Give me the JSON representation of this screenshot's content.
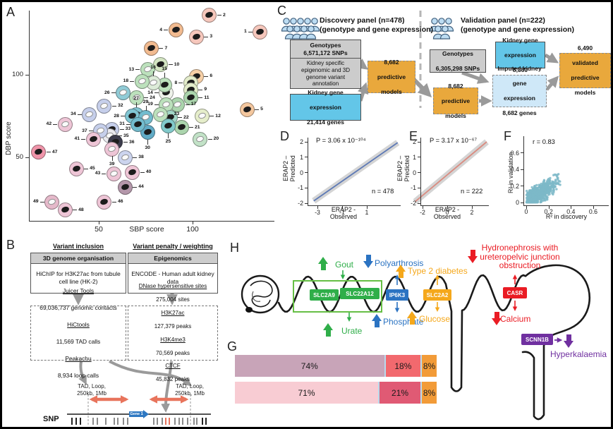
{
  "figure": {
    "panel_labels": {
      "a": "A",
      "b": "B",
      "c": "C",
      "d": "D",
      "e": "E",
      "f": "F",
      "g": "G",
      "h": "H"
    }
  },
  "chart_data": [
    {
      "id": "A",
      "type": "scatter",
      "xlabel": "SBP score",
      "ylabel": "DBP score",
      "x_ticks": [
        50,
        100
      ],
      "y_ticks": [
        50,
        100
      ],
      "xlim": [
        10,
        145
      ],
      "ylim": [
        10,
        145
      ],
      "description": "49 tissue/organ circles plotted by SBP vs DBP enrichment score",
      "points": [
        {
          "n": 1,
          "sbp": 136,
          "dbp": 126,
          "c": "#f6c7bc",
          "g": "dark",
          "s": "left"
        },
        {
          "n": 2,
          "sbp": 109,
          "dbp": 136,
          "c": "#f6c7bc",
          "g": "dark",
          "s": "right"
        },
        {
          "n": 3,
          "sbp": 102,
          "dbp": 123,
          "c": "#f6c7bc",
          "g": "dark",
          "s": "right"
        },
        {
          "n": 4,
          "sbp": 91,
          "dbp": 127,
          "c": "#f2bb90",
          "g": "dark",
          "s": "left"
        },
        {
          "n": 5,
          "sbp": 129,
          "dbp": 79,
          "c": "#f4c79e",
          "g": "dark",
          "s": "right"
        },
        {
          "n": 6,
          "sbp": 102,
          "dbp": 99,
          "c": "#f6cfa6",
          "g": "dark",
          "s": "right"
        },
        {
          "n": 7,
          "sbp": 78,
          "dbp": 116,
          "c": "#f2bb90",
          "g": "dark",
          "s": "right"
        },
        {
          "n": 8,
          "sbp": 99,
          "dbp": 95,
          "c": "#e3ecca",
          "g": "dark",
          "s": "left"
        },
        {
          "n": 9,
          "sbp": 99,
          "dbp": 91,
          "c": "#e3ecca",
          "g": "dark",
          "s": "right"
        },
        {
          "n": 10,
          "sbp": 83,
          "dbp": 106,
          "c": "#d3e5c2",
          "g": "dark",
          "s": "right"
        },
        {
          "n": 11,
          "sbp": 99,
          "dbp": 86,
          "c": "#abd5ad",
          "g": "dark",
          "s": "right"
        },
        {
          "n": 12,
          "sbp": 105,
          "dbp": 75,
          "c": "#e6eecb",
          "g": "light",
          "s": "right"
        },
        {
          "n": 13,
          "sbp": 76,
          "dbp": 103,
          "c": "#bce1bc",
          "g": "light",
          "s": "left"
        },
        {
          "n": 14,
          "sbp": 86,
          "dbp": 89,
          "c": "#eef2ea",
          "g": "dark",
          "s": "left"
        },
        {
          "n": 15,
          "sbp": 85,
          "dbp": 94,
          "c": "#bce1bc",
          "g": "dark",
          "s": "above"
        },
        {
          "n": 16,
          "sbp": 79,
          "dbp": 95,
          "c": "#dcebd8",
          "g": "light",
          "s": "above"
        },
        {
          "n": 17,
          "sbp": 92,
          "dbp": 82,
          "c": "#abd5ad",
          "g": "light",
          "s": "right"
        },
        {
          "n": 18,
          "sbp": 73,
          "dbp": 96,
          "c": "#bce1bc",
          "g": "light",
          "s": "left"
        },
        {
          "n": 19,
          "sbp": 86,
          "dbp": 82,
          "c": "#bce1bc",
          "g": "light",
          "s": "left"
        },
        {
          "n": 20,
          "sbp": 104,
          "dbp": 61,
          "c": "#c2e2c7",
          "g": "light",
          "s": "right"
        },
        {
          "n": 21,
          "sbp": 94,
          "dbp": 68,
          "c": "#abd5ad",
          "g": "dark",
          "s": "right"
        },
        {
          "n": 22,
          "sbp": 88,
          "dbp": 74,
          "c": "#a2d6c7",
          "g": "dark",
          "s": "right"
        },
        {
          "n": 23,
          "sbp": 83,
          "dbp": 76,
          "c": "#bce1bc",
          "g": "light",
          "s": "right"
        },
        {
          "n": 24,
          "sbp": 70,
          "dbp": 86,
          "c": "#bce1bc",
          "g": "light",
          "s": "right"
        },
        {
          "n": 25,
          "sbp": 87,
          "dbp": 69,
          "c": "#81cacb",
          "g": "dark",
          "s": "below"
        },
        {
          "n": 26,
          "sbp": 63,
          "dbp": 89,
          "c": "#90cbd6",
          "g": "light",
          "s": "left"
        },
        {
          "n": 27,
          "sbp": 70,
          "dbp": 76,
          "c": "#81c6d3",
          "g": "dark",
          "s": "above"
        },
        {
          "n": 28,
          "sbp": 68,
          "dbp": 75,
          "c": "#81c6d3",
          "g": "dark",
          "s": "left"
        },
        {
          "n": 29,
          "sbp": 75,
          "dbp": 74,
          "c": "#72bcce",
          "g": "light",
          "s": "above"
        },
        {
          "n": 30,
          "sbp": 76,
          "dbp": 65,
          "c": "#61abc6",
          "g": "dark",
          "s": "below"
        },
        {
          "n": 31,
          "sbp": 71,
          "dbp": 70,
          "c": "#72bcce",
          "g": "dark",
          "s": "left"
        },
        {
          "n": 32,
          "sbp": 53,
          "dbp": 81,
          "c": "#c6cfeb",
          "g": "light",
          "s": "right"
        },
        {
          "n": 33,
          "sbp": 57,
          "dbp": 67,
          "c": "#c6cfeb",
          "g": "dark",
          "s": "right"
        },
        {
          "n": 34,
          "sbp": 45,
          "dbp": 76,
          "c": "#c6cfeb",
          "g": "light",
          "s": "left"
        },
        {
          "n": 35,
          "sbp": 56,
          "dbp": 63,
          "c": "#eaeaef",
          "g": "light",
          "s": "right"
        },
        {
          "n": 36,
          "sbp": 59,
          "dbp": 59,
          "c": "#3c3c4c",
          "g": "dark",
          "s": "right"
        },
        {
          "n": 37,
          "sbp": 51,
          "dbp": 66,
          "c": "#c6cfeb",
          "g": "light",
          "s": "left"
        },
        {
          "n": 38,
          "sbp": 64,
          "dbp": 50,
          "c": "#ccd4ee",
          "g": "light",
          "s": "right"
        },
        {
          "n": 39,
          "sbp": 57,
          "dbp": 55,
          "c": "#eec5d6",
          "g": "light",
          "s": "below"
        },
        {
          "n": 40,
          "sbp": 68,
          "dbp": 41,
          "c": "#eec5d6",
          "g": "dark",
          "s": "right"
        },
        {
          "n": 41,
          "sbp": 47,
          "dbp": 61,
          "c": "#eec5d6",
          "g": "dark",
          "s": "left"
        },
        {
          "n": 42,
          "sbp": 32,
          "dbp": 70,
          "c": "#eec5d6",
          "g": "light",
          "s": "left"
        },
        {
          "n": 43,
          "sbp": 58,
          "dbp": 40,
          "c": "#eec5d6",
          "g": "light",
          "s": "left"
        },
        {
          "n": 44,
          "sbp": 64,
          "dbp": 32,
          "c": "#b497aa",
          "g": "dark",
          "s": "right"
        },
        {
          "n": 45,
          "sbp": 38,
          "dbp": 43,
          "c": "#eec5d6",
          "g": "dark",
          "s": "right"
        },
        {
          "n": 46,
          "sbp": 53,
          "dbp": 23,
          "c": "#eec5d6",
          "g": "dark",
          "s": "right"
        },
        {
          "n": 47,
          "sbp": 18,
          "dbp": 53,
          "c": "#f095aa",
          "g": "dark",
          "s": "right"
        },
        {
          "n": 48,
          "sbp": 32,
          "dbp": 18,
          "c": "#eec5d6",
          "g": "dark",
          "s": "right"
        },
        {
          "n": 49,
          "sbp": 25,
          "dbp": 23,
          "c": "#e5b9ca",
          "g": "light",
          "s": "left"
        }
      ]
    },
    {
      "id": "D",
      "type": "line",
      "p_label": "P = 3.06 x 10⁻¹⁰⁴",
      "n_label": "n = 478",
      "ylabel_lines": [
        "ERAP2 –",
        "Predicted"
      ],
      "xlabel_lines": [
        "ERAP2 -",
        "Observed"
      ],
      "x_ticks": [
        -3,
        -1,
        1
      ],
      "y_ticks": [
        2,
        1,
        0,
        -1,
        -2
      ],
      "line": {
        "x1": -3.3,
        "y1": -1.85,
        "x2": 3.5,
        "y2": 1.95
      },
      "line_color": "#5d79b5",
      "band_color": "#c6c6c6"
    },
    {
      "id": "E",
      "type": "line",
      "p_label": "P = 3.17 x 10⁻⁶⁷",
      "n_label": "n = 222",
      "ylabel_lines": [
        "ERAP2 –",
        "Predicted"
      ],
      "xlabel_lines": [
        "ERAP2 -",
        "Observed"
      ],
      "x_ticks": [
        -2,
        0,
        2
      ],
      "y_ticks": [
        2,
        1,
        0,
        -1,
        -2
      ],
      "line": {
        "x1": -2.6,
        "y1": -1.9,
        "x2": 3.2,
        "y2": 2.0
      },
      "line_color": "#d98b80",
      "band_color": "#c6c6c6"
    },
    {
      "id": "F",
      "type": "scatter",
      "r_label": "r = 0.83",
      "xlabel": "R² in discovery",
      "ylabel": "R² in validation",
      "x_ticks": [
        0,
        0.2,
        0.4,
        0.6
      ],
      "y_ticks": [
        0,
        0.2,
        0.4,
        0.6
      ],
      "xlim": [
        0,
        0.7
      ],
      "ylim": [
        0,
        0.7
      ],
      "point_color": "#7db9c8",
      "n_points": 900,
      "trend": "dense positively-correlated cloud concentrated near origin"
    },
    {
      "id": "G",
      "type": "stacked_bar",
      "orientation": "horizontal",
      "rows": [
        {
          "segments": [
            {
              "label": "74%",
              "value": 74,
              "color": "#c8a4b8"
            },
            {
              "label": "18%",
              "value": 18,
              "color": "#f2696e"
            },
            {
              "label": "8%",
              "value": 8,
              "color": "#f29b38"
            }
          ]
        },
        {
          "segments": [
            {
              "label": "71%",
              "value": 71,
              "color": "#f8ccd3"
            },
            {
              "label": "21%",
              "value": 21,
              "color": "#e05a74"
            },
            {
              "label": "8%",
              "value": 8,
              "color": "#f29b38"
            }
          ]
        }
      ]
    }
  ],
  "panel_b": {
    "col1_header": "Variant inclusion",
    "col2_header": "Variant penalty / weighting",
    "box1_title": "3D genome organisation",
    "box1_body": [
      "HiChIP for H3K27ac from tubule",
      "cell line (HK-2)"
    ],
    "box2_title": "Epigenomics",
    "box2_body": [
      "ENCODE - Human adult kidney",
      "data"
    ],
    "dash1_lines": [
      {
        "t": "Juicer Tools",
        "u": true
      },
      {
        "t": "69,036,737 genomic contacts"
      },
      {
        "t": "HiCtools",
        "u": true
      },
      {
        "t": "11,569 TAD calls"
      },
      {
        "t": "Peakachu",
        "u": true
      },
      {
        "t": "8,934 loop calls"
      }
    ],
    "dash2_lines": [
      {
        "t": "DNase hypersensitive sites",
        "u": true
      },
      {
        "t": "275,004 sites"
      },
      {
        "t": "H3K27ac",
        "u": true
      },
      {
        "t": "127,379 peaks"
      },
      {
        "t": "H3K4me3",
        "u": true
      },
      {
        "t": "70,569 peaks"
      },
      {
        "t": "CTCF",
        "u": true
      },
      {
        "t": "45,832 peaks"
      }
    ],
    "tad_label_lines": [
      "TAD, Loop,",
      "250kb, 1Mb"
    ],
    "gene_label": "Gene 1",
    "snp_label": "SNP",
    "snp_ticks": [
      {
        "x": 98,
        "c": "#222222"
      },
      {
        "x": 104,
        "c": "#222222"
      },
      {
        "x": 110,
        "c": "#222222"
      },
      {
        "x": 128,
        "c": "#8a8a8a"
      },
      {
        "x": 134,
        "c": "#8a8a8a"
      },
      {
        "x": 146,
        "c": "#8a8a8a"
      },
      {
        "x": 158,
        "c": "#8a8a8a"
      },
      {
        "x": 163,
        "c": "#8a8a8a"
      },
      {
        "x": 171,
        "c": "#8a8a8a"
      },
      {
        "x": 177,
        "c": "#8a8a8a"
      },
      {
        "x": 214,
        "c": "#8a8a8a"
      },
      {
        "x": 219,
        "c": "#8a8a8a"
      },
      {
        "x": 226,
        "c": "#8a8a8a"
      },
      {
        "x": 231,
        "c": "#e8745c"
      },
      {
        "x": 236,
        "c": "#e8745c"
      },
      {
        "x": 244,
        "c": "#8a8a8a"
      },
      {
        "x": 250,
        "c": "#8a8a8a"
      },
      {
        "x": 255,
        "c": "#8a8a8a"
      },
      {
        "x": 262,
        "c": "#8a8a8a"
      },
      {
        "x": 271,
        "c": "#8a8a8a"
      },
      {
        "x": 275,
        "c": "#8a8a8a"
      },
      {
        "x": 283,
        "c": "#222222"
      },
      {
        "x": 288,
        "c": "#222222"
      }
    ]
  },
  "panel_c": {
    "discovery_title": [
      "Discovery panel (n=478)",
      "(genotype and gene expression)"
    ],
    "validation_title": [
      "Validation panel (n=222)",
      "(genotype and gene expression)"
    ],
    "boxes": {
      "geno_disc_bold": [
        "Genotypes",
        "6,571,172 SNPs"
      ],
      "geno_disc_body": [
        "Kidney specific",
        "epigenomic and 3D",
        "genome variant",
        "annotation"
      ],
      "expr_disc": [
        "Kidney gene",
        "expression",
        "21,414 genes"
      ],
      "models_disc": [
        "8,682",
        "predictive",
        "models"
      ],
      "geno_val": [
        "Genotypes",
        "6,305,298 SNPs"
      ],
      "expr_val": [
        "Kidney gene",
        "expression",
        "8,360"
      ],
      "models_val": [
        "8,682",
        "predictive",
        "models"
      ],
      "imputed": [
        "Imputed kidney",
        "gene",
        "expression",
        "8,682 genes"
      ],
      "validated": [
        "6,490",
        "validated",
        "predictive",
        "models"
      ]
    },
    "colors": {
      "orange": "#e9a83c",
      "gray": "#cccccc",
      "blue": "#63c6e8",
      "light_blue": "#cfe8f8"
    }
  },
  "panel_h": {
    "genes": [
      {
        "name": "SLC2A9",
        "color": "#2fae49"
      },
      {
        "name": "SLC22A12",
        "color": "#2fae49"
      },
      {
        "name": "IP6K3",
        "color": "#2b73c2"
      },
      {
        "name": "SLC2A2",
        "color": "#f5a81c"
      },
      {
        "name": "CASR",
        "color": "#ea1c24"
      },
      {
        "name": "SCNN1B",
        "color": "#7030a0"
      }
    ],
    "annotations": [
      {
        "text": "Gout",
        "color": "#2fae49",
        "dir": "up"
      },
      {
        "text": "Urate",
        "color": "#2fae49",
        "dir": "up"
      },
      {
        "text": "Polyarthrosis",
        "color": "#2b73c2",
        "dir": "down"
      },
      {
        "text": "Phosphate",
        "color": "#2b73c2",
        "dir": "up"
      },
      {
        "text": "Type 2 diabetes",
        "color": "#f5a81c",
        "dir": "up"
      },
      {
        "text": "Glucose",
        "color": "#f5a81c",
        "dir": "up"
      },
      {
        "text": "Hydronephrosis with ureteropelvic junction obstruction",
        "lines": [
          "Hydronephrosis with",
          "ureteropelvic junction",
          "obstruction"
        ],
        "color": "#ea1c24",
        "dir": "down"
      },
      {
        "text": "Calcium",
        "color": "#ea1c24",
        "dir": "down"
      },
      {
        "text": "Hyperkalaemia",
        "color": "#7030a0",
        "dir": "down"
      }
    ]
  }
}
